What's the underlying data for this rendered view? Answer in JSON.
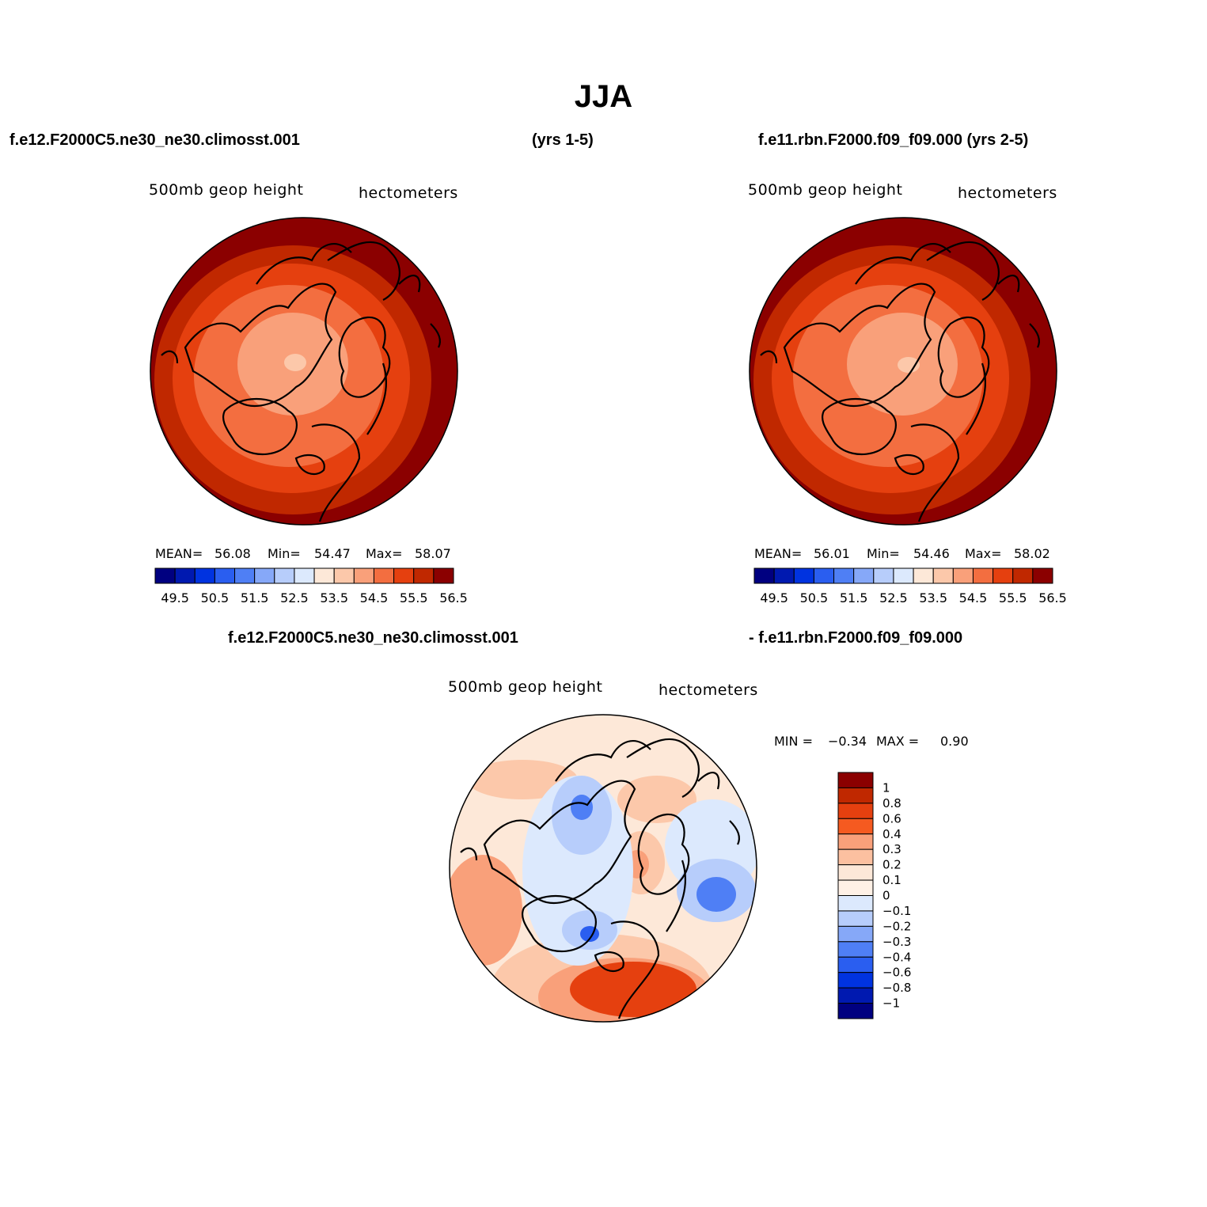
{
  "title": "JJA",
  "header": {
    "left_case": "f.e12.F2000C5.ne30_ne30.climosst.001",
    "left_years": "(yrs 1-5)",
    "right_case": "f.e11.rbn.F2000.f09_f09.000 (yrs 2-5)"
  },
  "diff_header": {
    "case1": "f.e12.F2000C5.ne30_ne30.climosst.001",
    "case2": "- f.e11.rbn.F2000.f09_f09.000"
  },
  "panels": [
    {
      "variable": "500mb geop height",
      "units": "hectometers",
      "stats": {
        "mean_label": "MEAN=",
        "mean": "56.08",
        "min_label": "Min=",
        "min": "54.47",
        "max_label": "Max=",
        "max": "58.07"
      }
    },
    {
      "variable": "500mb geop height",
      "units": "hectometers",
      "stats": {
        "mean_label": "MEAN=",
        "mean": "56.01",
        "min_label": "Min=",
        "min": "54.46",
        "max_label": "Max=",
        "max": "58.02"
      }
    },
    {
      "variable": "500mb geop height",
      "units": "hectometers",
      "stats": {
        "min_label": "MIN =",
        "min": "−0.34",
        "max_label": "MAX =",
        "max": "0.90"
      }
    }
  ],
  "colorbar_abs": {
    "tick_labels": [
      "49.5",
      "50.5",
      "51.5",
      "52.5",
      "53.5",
      "54.5",
      "55.5",
      "56.5"
    ],
    "colors": [
      "#000080",
      "#0019b0",
      "#0033e0",
      "#2a5ef0",
      "#4f7ff5",
      "#86a8f8",
      "#b7cdfb",
      "#dce9fd",
      "#fde8d8",
      "#fcc8aa",
      "#f9a07a",
      "#f36e40",
      "#e5400f",
      "#c02800",
      "#8b0000"
    ]
  },
  "colorbar_diff": {
    "tick_labels": [
      "1",
      "0.8",
      "0.6",
      "0.4",
      "0.3",
      "0.2",
      "0.1",
      "0",
      "−0.1",
      "−0.2",
      "−0.3",
      "−0.4",
      "−0.6",
      "−0.8",
      "−1"
    ],
    "colors": [
      "#8b0000",
      "#c02800",
      "#e5400f",
      "#f55a20",
      "#f9a07a",
      "#fcc0a0",
      "#fde8d8",
      "#fff1e6",
      "#dce9fd",
      "#b7cdfb",
      "#86a8f8",
      "#4f7ff5",
      "#2a5ef0",
      "#0033e0",
      "#0019b0",
      "#000080"
    ]
  }
}
